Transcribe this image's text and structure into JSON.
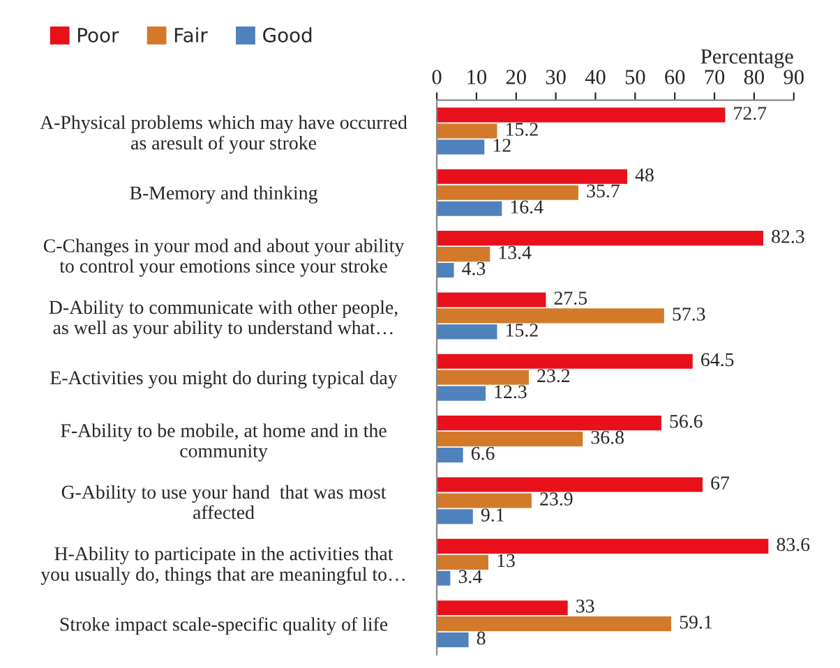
{
  "chart_data": {
    "type": "bar",
    "orientation": "horizontal",
    "xlabel": "Percentage",
    "categories": [
      "A-Physical problems which may have occurred\nas aresult of your stroke",
      "B-Memory and thinking",
      "C-Changes in your mod and about your ability\nto control your emotions since your stroke",
      "D-Ability to communicate with other people,\nas well as your ability to understand what…",
      "E-Activities you might do during typical day",
      "F-Ability to be mobile, at home and in the\ncommunity",
      "G-Ability to use your hand  that was most\naffected",
      "H-Ability to participate in the activities that\nyou usually do, things that are meaningful to…",
      "Stroke impact scale-specific quality of life"
    ],
    "series": [
      {
        "name": "Poor",
        "color": "#e8101a",
        "values": [
          72.7,
          48,
          82.3,
          27.5,
          64.5,
          56.6,
          67,
          83.6,
          33
        ]
      },
      {
        "name": "Fair",
        "color": "#d27a2a",
        "values": [
          15.2,
          35.7,
          13.4,
          57.3,
          23.2,
          36.8,
          23.9,
          13,
          59.1
        ]
      },
      {
        "name": "Good",
        "color": "#4f81bd",
        "values": [
          12,
          16.4,
          4.3,
          15.2,
          12.3,
          6.6,
          9.1,
          3.4,
          8
        ]
      }
    ],
    "xlim": [
      0,
      90
    ],
    "xticks": [
      0,
      10,
      20,
      30,
      40,
      50,
      60,
      70,
      80,
      90
    ],
    "data_labels": true,
    "legend": "top left",
    "grid": false
  }
}
